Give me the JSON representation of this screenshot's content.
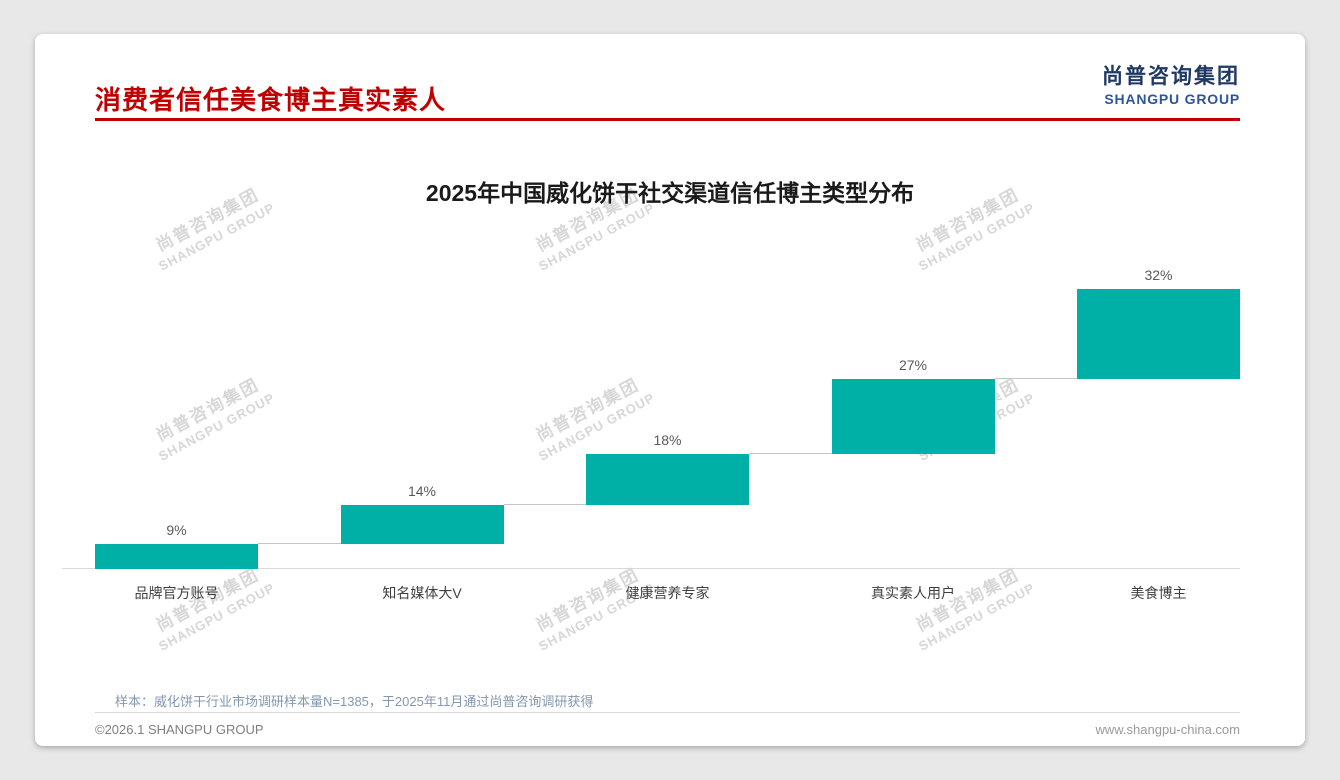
{
  "header": {
    "page_title": "消费者信任美食博主真实素人",
    "logo_cn": "尚普咨询集团",
    "logo_en": "SHANGPU GROUP"
  },
  "watermark": {
    "cn": "尚普咨询集团",
    "en": "SHANGPU GROUP"
  },
  "chart_data": {
    "type": "bar",
    "variant": "waterfall",
    "title": "2025年中国威化饼干社交渠道信任博主类型分布",
    "categories": [
      "品牌官方账号",
      "知名媒体大V",
      "健康营养专家",
      "真实素人用户",
      "美食博主"
    ],
    "values": [
      9,
      14,
      18,
      27,
      32
    ],
    "value_labels": [
      "9%",
      "14%",
      "18%",
      "27%",
      "32%"
    ],
    "cumulative": [
      9,
      23,
      41,
      68,
      100
    ],
    "unit": "%",
    "ylim": [
      0,
      100
    ],
    "bar_color": "#00AFA6",
    "grid": false,
    "legend": false
  },
  "footnote": "样本：威化饼干行业市场调研样本量N=1385，于2025年11月通过尚普咨询调研获得",
  "footer": {
    "left": "©2026.1 SHANGPU GROUP",
    "right": "www.shangpu-china.com"
  },
  "colors": {
    "accent_red": "#C00000",
    "bar_teal": "#00AFA6",
    "logo_navy": "#1F3864",
    "logo_blue": "#2F5597",
    "watermark_gray": "#D7D7D7",
    "note_slate": "#8497B0"
  }
}
